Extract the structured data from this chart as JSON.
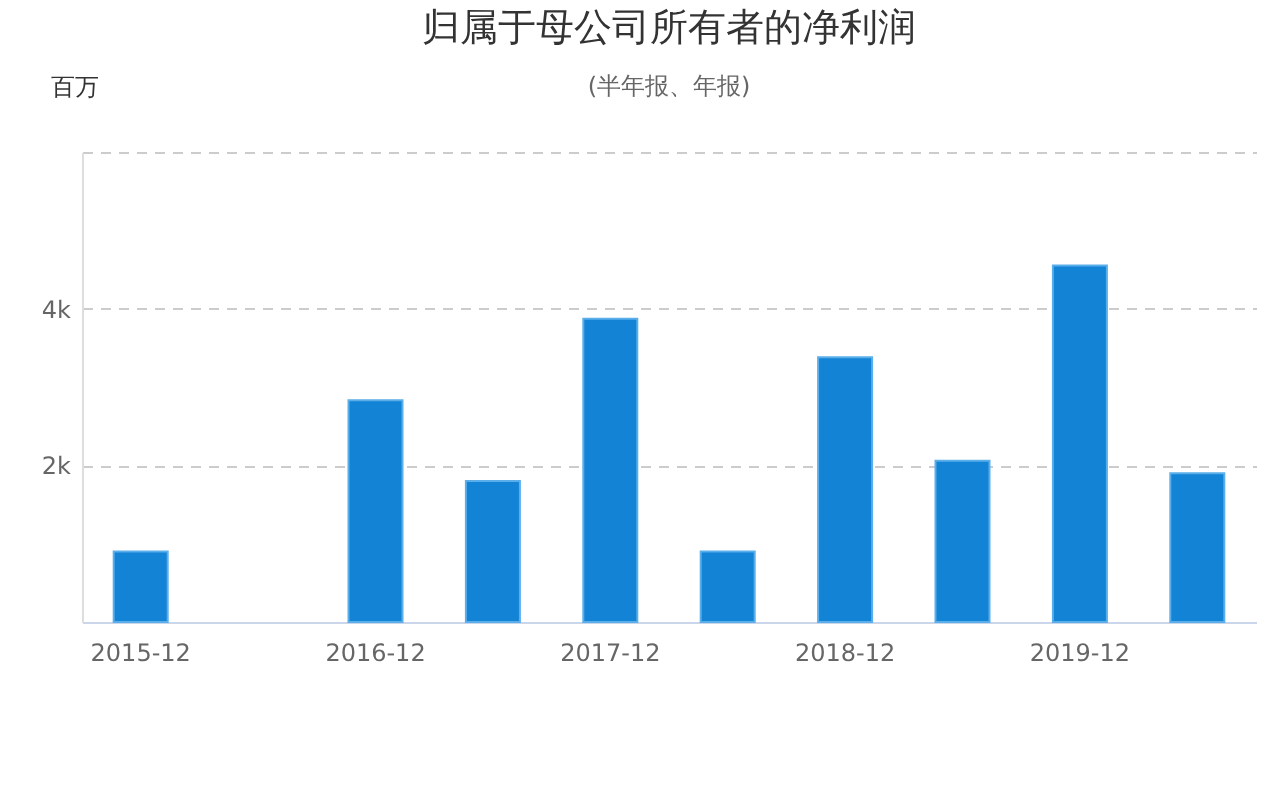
{
  "chart_data": {
    "type": "bar",
    "title": "归属于母公司所有者的净利润",
    "subtitle": "(半年报、年报)",
    "ylabel": "百万",
    "categories": [
      "2015-12",
      null,
      "2016-12",
      null,
      "2017-12",
      null,
      "2018-12",
      null,
      "2019-12",
      null
    ],
    "values": [
      900,
      null,
      2830,
      1800,
      3870,
      900,
      3380,
      2060,
      4550,
      1900
    ],
    "color": "#1383d6",
    "ylim": [
      0,
      6000
    ],
    "yticks": [
      {
        "value": 0,
        "label": null
      },
      {
        "value": 2000,
        "label": "2k"
      },
      {
        "value": 4000,
        "label": "4k"
      },
      {
        "value": 6000,
        "label": null
      }
    ],
    "grid": "y"
  }
}
